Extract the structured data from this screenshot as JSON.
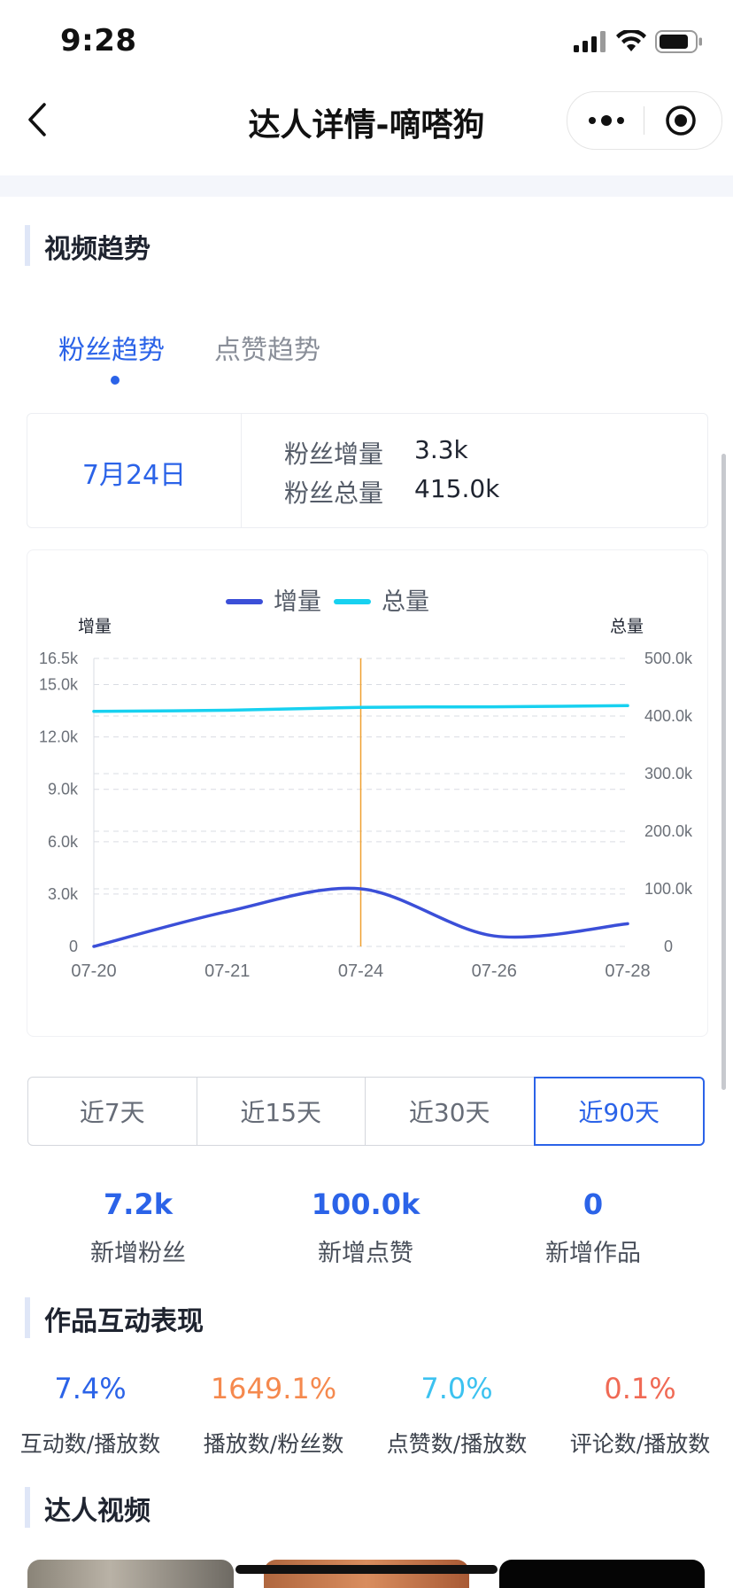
{
  "status_bar": {
    "time": "9:28"
  },
  "nav": {
    "title": "达人详情-嘀嗒狗"
  },
  "sections": {
    "video_trend": "视频趋势",
    "interaction": "作品互动表现",
    "videos": "达人视频"
  },
  "tabs": [
    {
      "label": "粉丝趋势",
      "active": true
    },
    {
      "label": "点赞趋势",
      "active": false
    }
  ],
  "info_card": {
    "date": "7月24日",
    "rows": [
      {
        "label": "粉丝增量",
        "value": "3.3k"
      },
      {
        "label": "粉丝总量",
        "value": "415.0k"
      }
    ]
  },
  "chart_data": {
    "type": "line",
    "categories": [
      "07-20",
      "07-21",
      "07-24",
      "07-26",
      "07-28"
    ],
    "legend": [
      "增量",
      "总量"
    ],
    "left_axis": {
      "title": "增量",
      "ticks": [
        "0",
        "3.0k",
        "6.0k",
        "9.0k",
        "12.0k",
        "15.0k",
        "16.5k"
      ],
      "range": [
        0,
        16500
      ]
    },
    "right_axis": {
      "title": "总量",
      "ticks": [
        "0",
        "100.0k",
        "200.0k",
        "300.0k",
        "400.0k",
        "500.0k"
      ],
      "range": [
        0,
        500000
      ]
    },
    "series": [
      {
        "name": "增量",
        "axis": "left",
        "color": "#3b4fd8",
        "values": [
          0,
          2000,
          3300,
          600,
          1300
        ]
      },
      {
        "name": "总量",
        "axis": "right",
        "color": "#17d1f0",
        "values": [
          408000,
          410000,
          415000,
          416000,
          418000
        ]
      }
    ],
    "highlight_category": "07-24",
    "highlight_color": "#f0a030",
    "grid": true,
    "legend_position": "top-center"
  },
  "ranges": [
    {
      "label": "近7天",
      "active": false
    },
    {
      "label": "近15天",
      "active": false
    },
    {
      "label": "近30天",
      "active": false
    },
    {
      "label": "近90天",
      "active": true
    }
  ],
  "stats": [
    {
      "value": "7.2k",
      "label": "新增粉丝"
    },
    {
      "value": "100.0k",
      "label": "新增点赞"
    },
    {
      "value": "0",
      "label": "新增作品"
    }
  ],
  "metrics": [
    {
      "value": "7.4%",
      "label": "互动数/播放数",
      "color": "#2b63e8"
    },
    {
      "value": "1649.1%",
      "label": "播放数/粉丝数",
      "color": "#f5894e"
    },
    {
      "value": "7.0%",
      "label": "点赞数/播放数",
      "color": "#3cc2f0"
    },
    {
      "value": "0.1%",
      "label": "评论数/播放数",
      "color": "#f06a55"
    }
  ]
}
